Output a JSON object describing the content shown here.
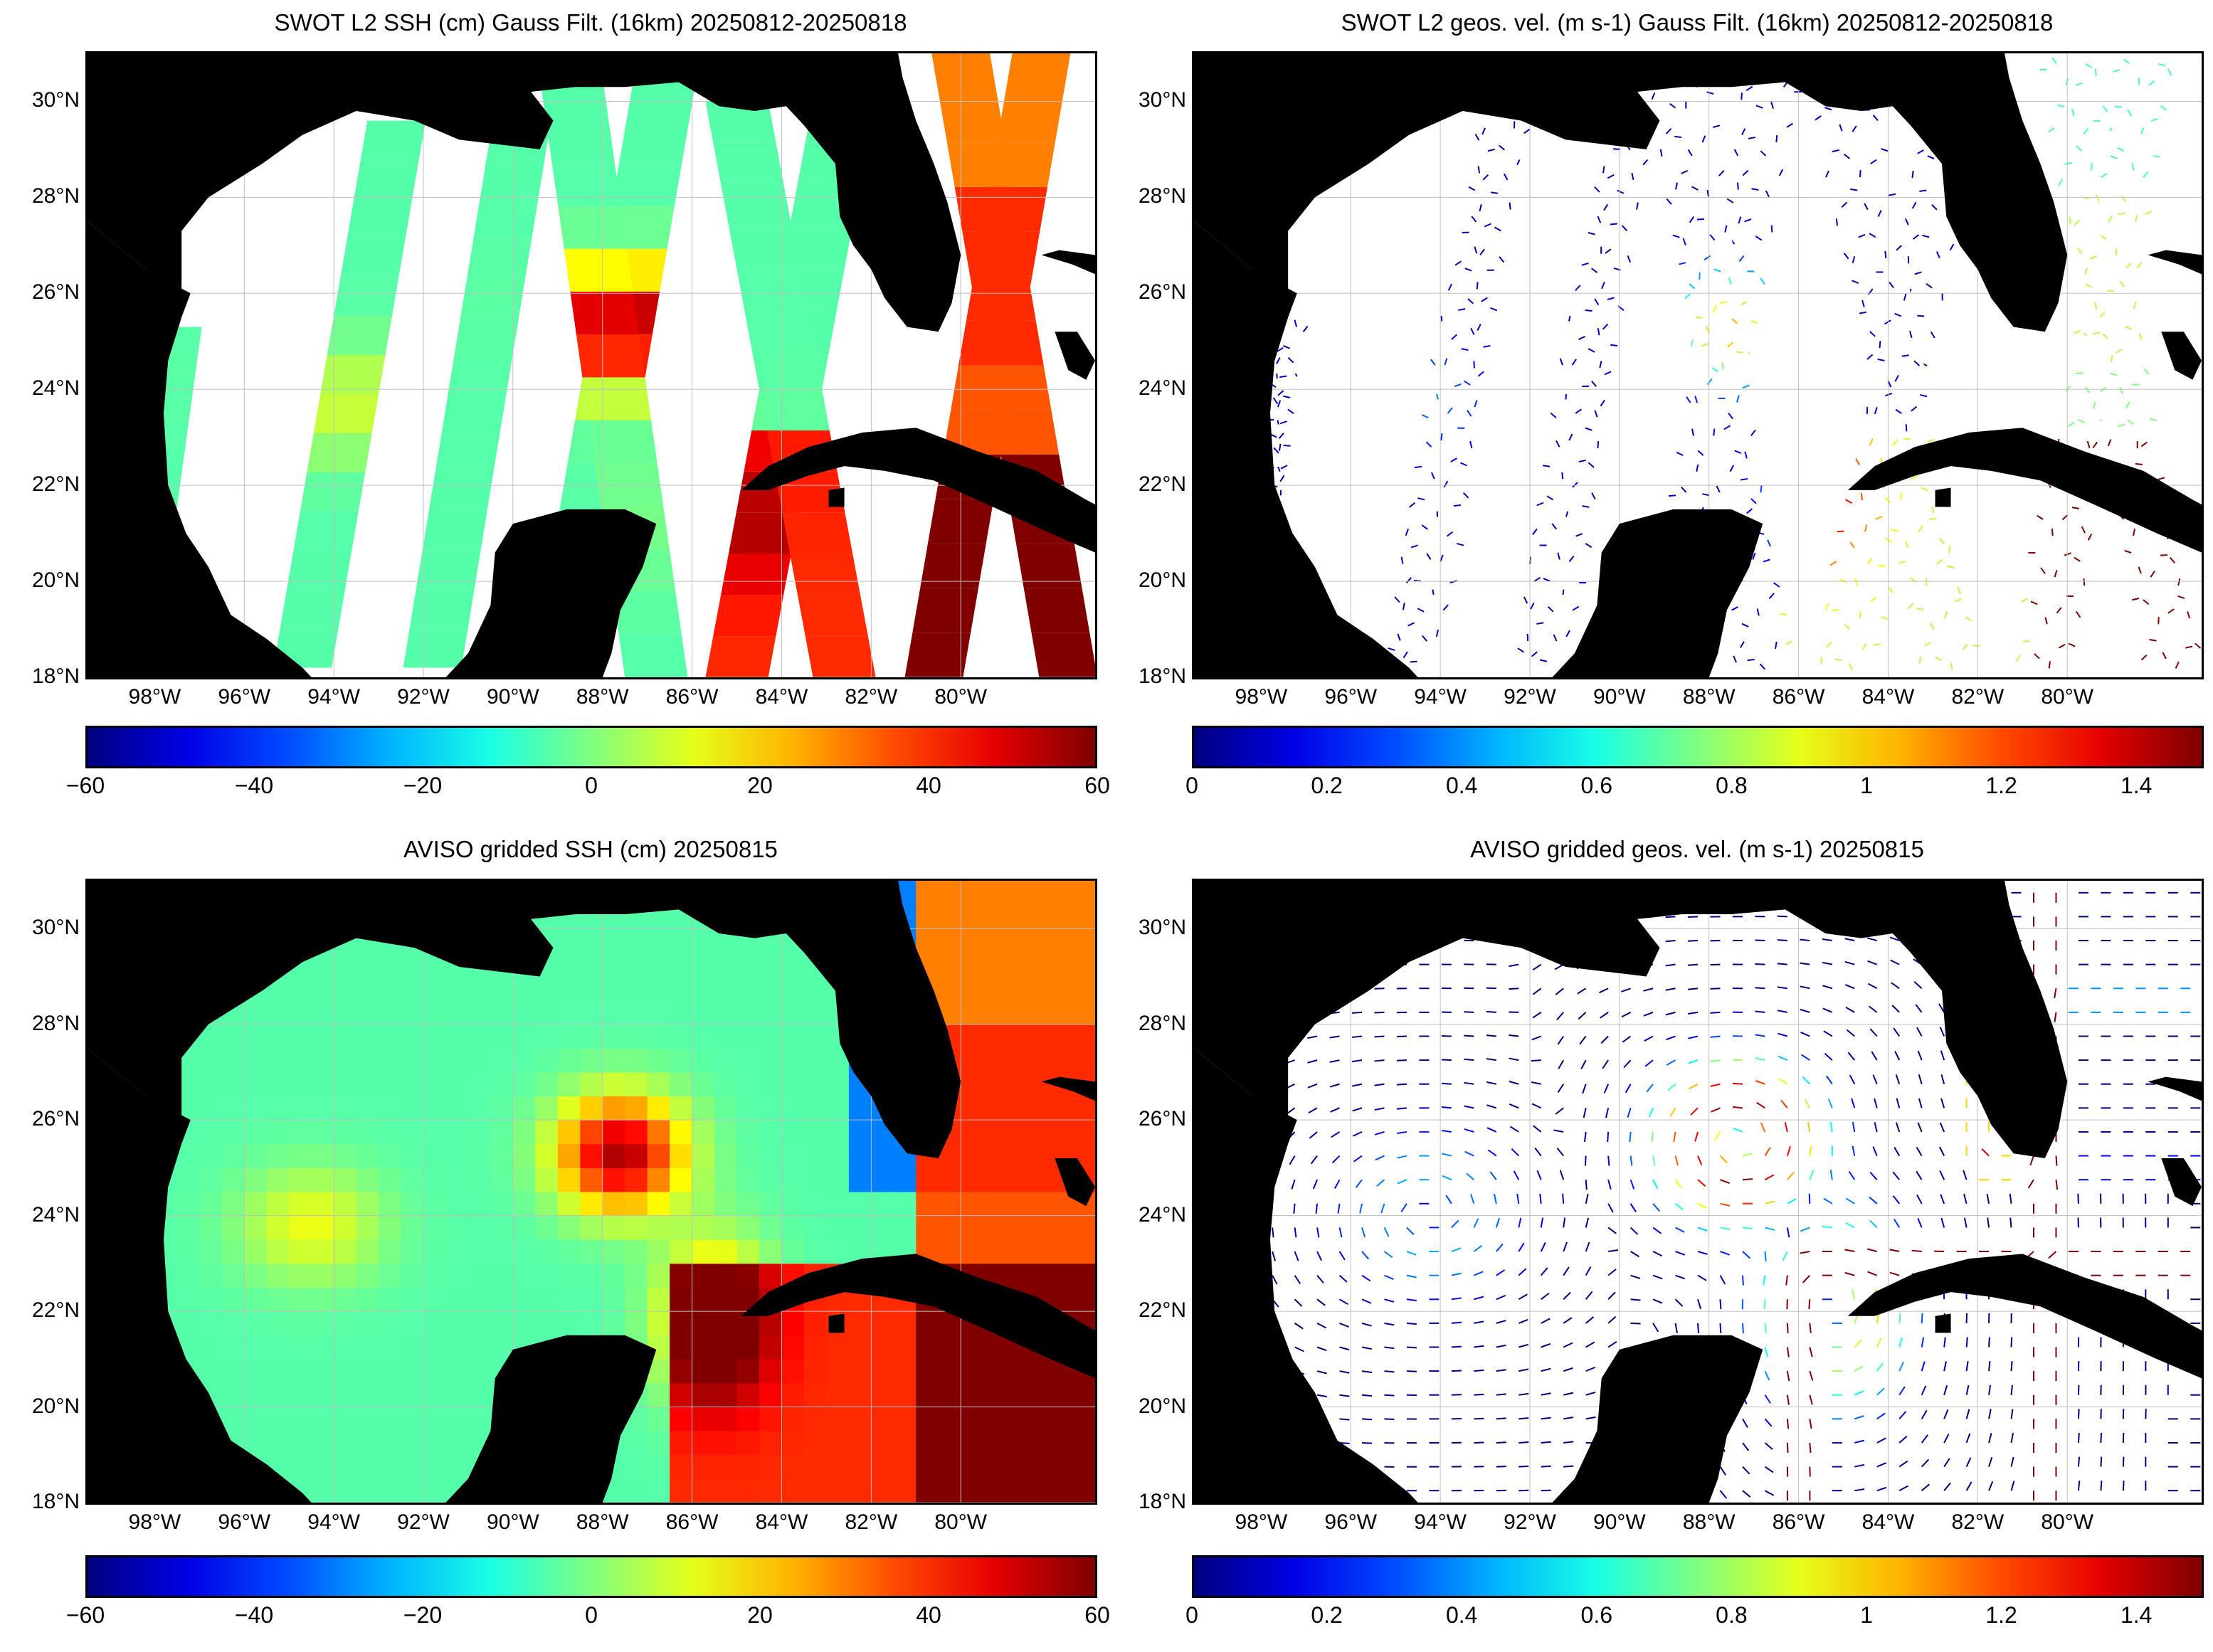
{
  "panels": [
    {
      "id": "swot-ssh",
      "title": "SWOT L2 SSH (cm) Gauss Filt. (16km) 20250812-20250818",
      "kind": "swot-ssh",
      "colorbar": {
        "colormap": "jet",
        "min": -60,
        "max": 60,
        "ticks": [
          "−60",
          "−40",
          "−20",
          "0",
          "20",
          "40",
          "60"
        ]
      }
    },
    {
      "id": "swot-vel",
      "title": "SWOT L2 geos. vel. (m s-1) Gauss Filt. (16km) 20250812-20250818",
      "kind": "swot-vel",
      "colorbar": {
        "colormap": "jet",
        "min": 0,
        "max": 1.5,
        "ticks": [
          "0",
          "0.2",
          "0.4",
          "0.6",
          "0.8",
          "1",
          "1.2",
          "1.4"
        ]
      }
    },
    {
      "id": "aviso-ssh",
      "title": "AVISO gridded SSH (cm) 20250815",
      "kind": "aviso-ssh",
      "colorbar": {
        "colormap": "jet",
        "min": -60,
        "max": 60,
        "ticks": [
          "−60",
          "−40",
          "−20",
          "0",
          "20",
          "40",
          "60"
        ]
      }
    },
    {
      "id": "aviso-vel",
      "title": "AVISO gridded geos. vel. (m s-1)  20250815",
      "kind": "aviso-vel",
      "colorbar": {
        "colormap": "jet",
        "min": 0,
        "max": 1.5,
        "ticks": [
          "0",
          "0.2",
          "0.4",
          "0.6",
          "0.8",
          "1",
          "1.2",
          "1.4"
        ]
      }
    }
  ],
  "axes": {
    "lon_range": [
      -99.5,
      -77.0
    ],
    "lat_range": [
      18.0,
      31.0
    ],
    "lat_labels": [
      "18°N",
      "20°N",
      "22°N",
      "24°N",
      "26°N",
      "28°N",
      "30°N"
    ],
    "lon_labels": [
      "98°W",
      "96°W",
      "94°W",
      "92°W",
      "90°W",
      "88°W",
      "86°W",
      "84°W",
      "82°W",
      "80°W"
    ],
    "grid": true
  },
  "colors": {
    "land": "#000000",
    "no_data": "#ffffff",
    "grid": "#bfbfbf"
  }
}
